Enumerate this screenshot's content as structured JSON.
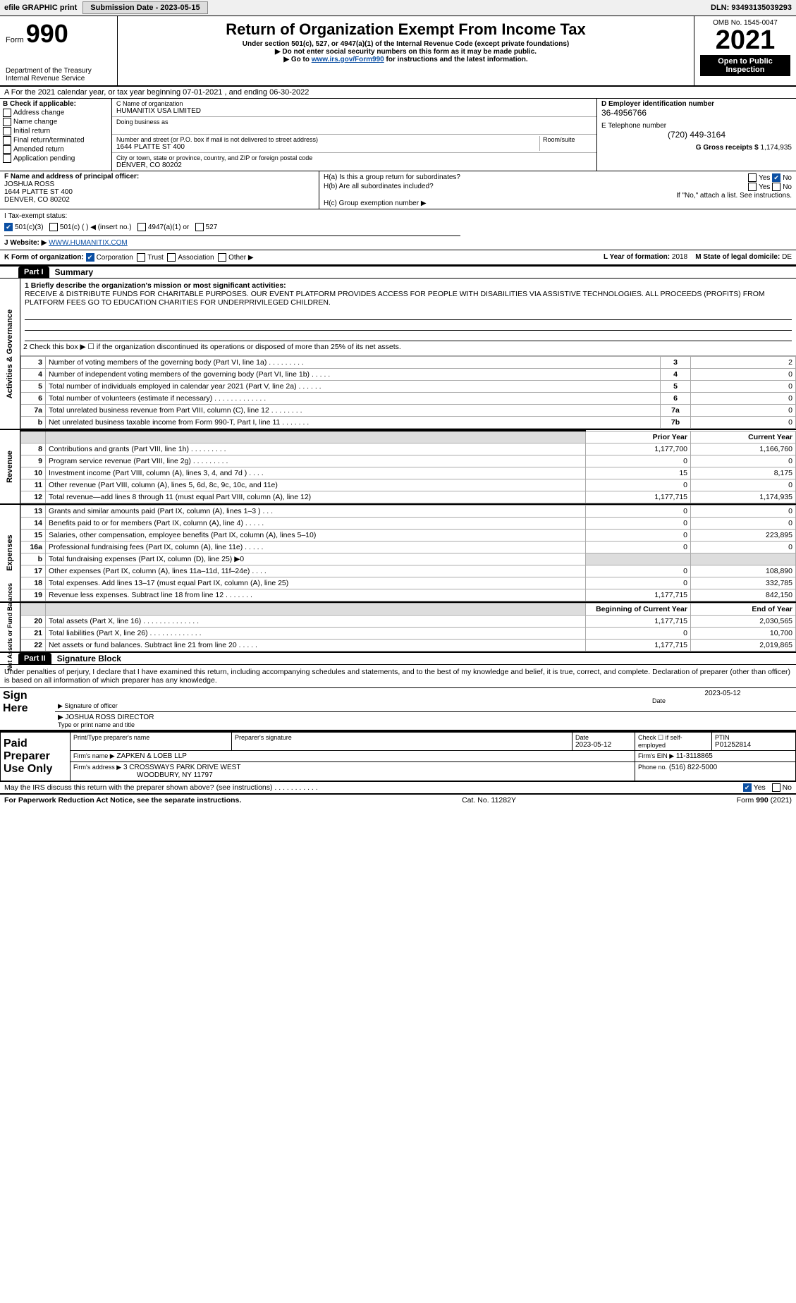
{
  "top_bar": {
    "efile": "efile GRAPHIC print",
    "submission": "Submission Date - 2023-05-15",
    "dln": "DLN: 93493135039293"
  },
  "header": {
    "form_prefix": "Form",
    "form_number": "990",
    "dept": "Department of the Treasury",
    "service": "Internal Revenue Service",
    "title": "Return of Organization Exempt From Income Tax",
    "subtitle1": "Under section 501(c), 527, or 4947(a)(1) of the Internal Revenue Code (except private foundations)",
    "subtitle2": "▶ Do not enter social security numbers on this form as it may be made public.",
    "subtitle3_prefix": "▶ Go to ",
    "subtitle3_link": "www.irs.gov/Form990",
    "subtitle3_suffix": " for instructions and the latest information.",
    "omb": "OMB No. 1545-0047",
    "year": "2021",
    "open_public": "Open to Public Inspection"
  },
  "row_a": "A For the 2021 calendar year, or tax year beginning 07-01-2021    , and ending 06-30-2022",
  "box_b": {
    "title": "B Check if applicable:",
    "items": [
      "Address change",
      "Name change",
      "Initial return",
      "Final return/terminated",
      "Amended return",
      "Application pending"
    ]
  },
  "box_c": {
    "name_label": "C Name of organization",
    "name_value": "HUMANITIX USA LIMITED",
    "dba_label": "Doing business as",
    "addr_label": "Number and street (or P.O. box if mail is not delivered to street address)",
    "room_label": "Room/suite",
    "addr_value": "1644 PLATTE ST 400",
    "city_label": "City or town, state or province, country, and ZIP or foreign postal code",
    "city_value": "DENVER, CO  80202"
  },
  "box_d": {
    "label": "D Employer identification number",
    "value": "36-4956766"
  },
  "box_e": {
    "label": "E Telephone number",
    "value": "(720) 449-3164"
  },
  "box_g": {
    "label": "G Gross receipts $",
    "value": "1,174,935"
  },
  "box_f": {
    "label": "F Name and address of principal officer:",
    "name": "JOSHUA ROSS",
    "addr1": "1644 PLATTE ST 400",
    "addr2": "DENVER, CO  80202"
  },
  "box_h": {
    "a_label": "H(a)  Is this a group return for subordinates?",
    "a_yes": "Yes",
    "a_no": "No",
    "b_label": "H(b)  Are all subordinates included?",
    "b_note": "If \"No,\" attach a list. See instructions.",
    "c_label": "H(c)  Group exemption number ▶"
  },
  "row_i": {
    "label": "I   Tax-exempt status:",
    "opt1": "501(c)(3)",
    "opt2": "501(c) (   ) ◀ (insert no.)",
    "opt3": "4947(a)(1) or",
    "opt4": "527"
  },
  "row_j": {
    "label": "J   Website: ▶",
    "value": "WWW.HUMANITIX.COM"
  },
  "row_k": {
    "label": "K Form of organization:",
    "opts": [
      "Corporation",
      "Trust",
      "Association",
      "Other ▶"
    ],
    "l_label": "L Year of formation:",
    "l_value": "2018",
    "m_label": "M State of legal domicile:",
    "m_value": "DE"
  },
  "part1": {
    "header": "Part I",
    "title": "Summary"
  },
  "summary": {
    "item1_label": "1  Briefly describe the organization's mission or most significant activities:",
    "item1_text": "RECEIVE & DISTRIBUTE FUNDS FOR CHARITABLE PURPOSES. OUR EVENT PLATFORM PROVIDES ACCESS FOR PEOPLE WITH DISABILITIES VIA ASSISTIVE TECHNOLOGIES. ALL PROCEEDS (PROFITS) FROM PLATFORM FEES GO TO EDUCATION CHARITIES FOR UNDERPRIVILEGED CHILDREN.",
    "item2": "2  Check this box ▶ ☐  if the organization discontinued its operations or disposed of more than 25% of its net assets.",
    "rows_ag": [
      {
        "n": "3",
        "d": "Number of voting members of the governing body (Part VI, line 1a)  .    .    .    .    .    .    .    .    .",
        "box": "3",
        "v": "2"
      },
      {
        "n": "4",
        "d": "Number of independent voting members of the governing body (Part VI, line 1b)   .    .    .    .    .",
        "box": "4",
        "v": "0"
      },
      {
        "n": "5",
        "d": "Total number of individuals employed in calendar year 2021 (Part V, line 2a)   .    .    .    .    .    .",
        "box": "5",
        "v": "0"
      },
      {
        "n": "6",
        "d": "Total number of volunteers (estimate if necessary)    .    .    .    .    .    .    .    .    .    .    .    .    .",
        "box": "6",
        "v": "0"
      },
      {
        "n": "7a",
        "d": "Total unrelated business revenue from Part VIII, column (C), line 12   .    .    .    .    .    .    .    .",
        "box": "7a",
        "v": "0"
      },
      {
        "n": "b",
        "d": "Net unrelated business taxable income from Form 990-T, Part I, line 11    .    .    .    .    .    .    .",
        "box": "7b",
        "v": "0"
      }
    ],
    "col_headers": {
      "prior": "Prior Year",
      "current": "Current Year"
    },
    "revenue": [
      {
        "n": "8",
        "d": "Contributions and grants (Part VIII, line 1h)   .    .    .    .    .    .    .    .    .",
        "p": "1,177,700",
        "c": "1,166,760"
      },
      {
        "n": "9",
        "d": "Program service revenue (Part VIII, line 2g)   .    .    .    .    .    .    .    .    .",
        "p": "0",
        "c": "0"
      },
      {
        "n": "10",
        "d": "Investment income (Part VIII, column (A), lines 3, 4, and 7d )   .    .    .    .",
        "p": "15",
        "c": "8,175"
      },
      {
        "n": "11",
        "d": "Other revenue (Part VIII, column (A), lines 5, 6d, 8c, 9c, 10c, and 11e)",
        "p": "0",
        "c": "0"
      },
      {
        "n": "12",
        "d": "Total revenue—add lines 8 through 11 (must equal Part VIII, column (A), line 12)",
        "p": "1,177,715",
        "c": "1,174,935"
      }
    ],
    "expenses": [
      {
        "n": "13",
        "d": "Grants and similar amounts paid (Part IX, column (A), lines 1–3 )  .    .    .",
        "p": "0",
        "c": "0"
      },
      {
        "n": "14",
        "d": "Benefits paid to or for members (Part IX, column (A), line 4)  .    .    .    .    .",
        "p": "0",
        "c": "0"
      },
      {
        "n": "15",
        "d": "Salaries, other compensation, employee benefits (Part IX, column (A), lines 5–10)",
        "p": "0",
        "c": "223,895"
      },
      {
        "n": "16a",
        "d": "Professional fundraising fees (Part IX, column (A), line 11e)   .    .    .    .    .",
        "p": "0",
        "c": "0"
      },
      {
        "n": "b",
        "d": "Total fundraising expenses (Part IX, column (D), line 25) ▶0",
        "p": "",
        "c": ""
      },
      {
        "n": "17",
        "d": "Other expenses (Part IX, column (A), lines 11a–11d, 11f–24e)   .    .    .    .",
        "p": "0",
        "c": "108,890"
      },
      {
        "n": "18",
        "d": "Total expenses. Add lines 13–17 (must equal Part IX, column (A), line 25)",
        "p": "0",
        "c": "332,785"
      },
      {
        "n": "19",
        "d": "Revenue less expenses. Subtract line 18 from line 12  .    .    .    .    .    .    .",
        "p": "1,177,715",
        "c": "842,150"
      }
    ],
    "netassets_headers": {
      "begin": "Beginning of Current Year",
      "end": "End of Year"
    },
    "netassets": [
      {
        "n": "20",
        "d": "Total assets (Part X, line 16)  .    .    .    .    .    .    .    .    .    .    .    .    .    .",
        "p": "1,177,715",
        "c": "2,030,565"
      },
      {
        "n": "21",
        "d": "Total liabilities (Part X, line 26)   .    .    .    .    .    .    .    .    .    .    .    .    .",
        "p": "0",
        "c": "10,700"
      },
      {
        "n": "22",
        "d": "Net assets or fund balances. Subtract line 21 from line 20   .    .    .    .    .",
        "p": "1,177,715",
        "c": "2,019,865"
      }
    ]
  },
  "side_labels": {
    "ag": "Activities & Governance",
    "rev": "Revenue",
    "exp": "Expenses",
    "na": "Net Assets or Fund Balances"
  },
  "part2": {
    "header": "Part II",
    "title": "Signature Block",
    "declaration": "Under penalties of perjury, I declare that I have examined this return, including accompanying schedules and statements, and to the best of my knowledge and belief, it is true, correct, and complete. Declaration of preparer (other than officer) is based on all information of which preparer has any knowledge."
  },
  "sign_here": {
    "label": "Sign Here",
    "sig_label": "Signature of officer",
    "date": "2023-05-12",
    "date_label": "Date",
    "name": "JOSHUA ROSS  DIRECTOR",
    "name_label": "Type or print name and title"
  },
  "paid_prep": {
    "label": "Paid Preparer Use Only",
    "r1_c1": "Print/Type preparer's name",
    "r1_c2": "Preparer's signature",
    "r1_date_label": "Date",
    "r1_date": "2023-05-12",
    "r1_check": "Check ☐ if self-employed",
    "r1_ptin_label": "PTIN",
    "r1_ptin": "P01252814",
    "r2_firm_label": "Firm's name    ▶",
    "r2_firm": "ZAPKEN & LOEB LLP",
    "r2_ein_label": "Firm's EIN ▶",
    "r2_ein": "11-3118865",
    "r3_addr_label": "Firm's address ▶",
    "r3_addr1": "3 CROSSWAYS PARK DRIVE WEST",
    "r3_addr2": "WOODBURY, NY  11797",
    "r3_phone_label": "Phone no.",
    "r3_phone": "(516) 822-5000"
  },
  "discuss": {
    "text": "May the IRS discuss this return with the preparer shown above? (see instructions)   .    .    .    .    .    .    .    .    .    .    .",
    "yes": "Yes",
    "no": "No"
  },
  "footer": {
    "left": "For Paperwork Reduction Act Notice, see the separate instructions.",
    "mid": "Cat. No. 11282Y",
    "right_prefix": "Form ",
    "right_form": "990",
    "right_suffix": " (2021)"
  }
}
